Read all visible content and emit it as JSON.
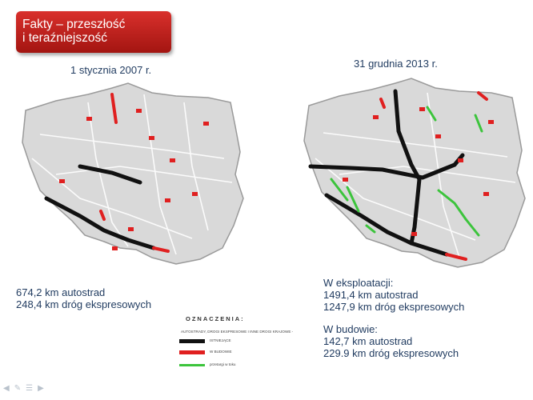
{
  "slide": {
    "title_line1": "Fakty – przeszłość",
    "title_line2": "i teraźniejszość"
  },
  "left_map": {
    "date": "1 stycznia 2007 r.",
    "stats": [
      "674,2 km autostrad",
      "248,4 km dróg ekspresowych"
    ]
  },
  "right_map": {
    "date": "31 grudnia 2013 r.",
    "operation_header": "W eksploatacji:",
    "operation_stats": [
      "1491,4 km autostrad",
      "1247,9 km dróg ekspresowych"
    ],
    "construction_header": "W budowie:",
    "construction_stats": [
      "142,7 km autostrad",
      "229.9 km dróg ekspresowych"
    ]
  },
  "legend": {
    "title": "OZNACZENIA:",
    "subtitle": "AUTOSTRADY, DROGI EKSPRESOWE I INNE DROGI KRAJOWE -",
    "items": [
      {
        "label": "ISTNIEJĄCE",
        "color": "#111111"
      },
      {
        "label": "W BUDOWIE",
        "color": "#e02020"
      },
      {
        "label": "przetargi w toku",
        "color": "#3cc43c"
      }
    ]
  },
  "colors": {
    "title_bg": "#c0211d",
    "land": "#d9d9d9",
    "existing": "#111111",
    "construction": "#e02020",
    "tender": "#3cc43c",
    "text": "#1f3a5f"
  },
  "nav_icons": [
    "arrow-left-icon",
    "pen-icon",
    "menu-icon",
    "arrow-right-icon"
  ]
}
